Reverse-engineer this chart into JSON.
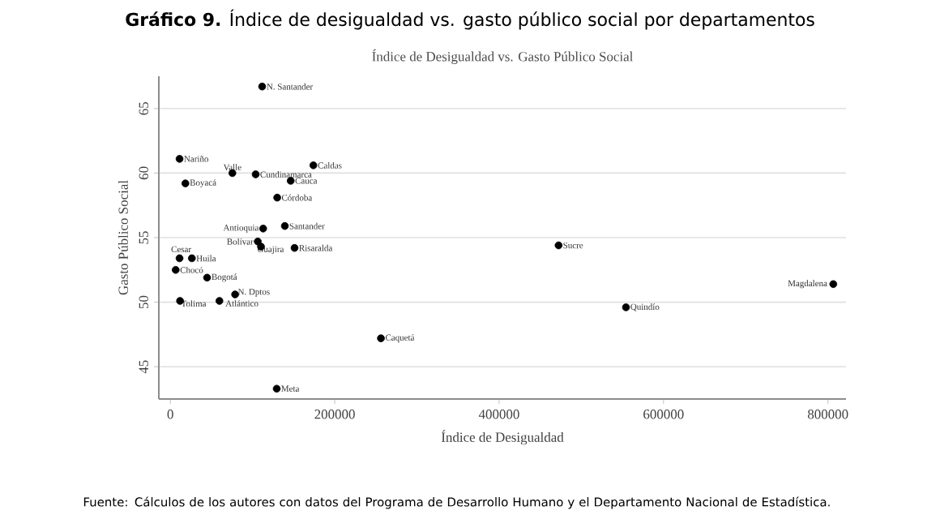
{
  "chart_data": {
    "type": "scatter",
    "title": "**Gráfico 9.** Índice de desigualdad vs. gasto público social por departamentos",
    "subtitle": "Índice de Desigualdad vs. Gasto Público Social",
    "xlabel": "Índice de Desigualdad",
    "ylabel": "Gasto Público Social",
    "x": [
      111700,
      11200,
      75500,
      103800,
      174000,
      18300,
      146400,
      130000,
      112900,
      139300,
      106400,
      110300,
      151100,
      11200,
      26200,
      6500,
      44700,
      78800,
      11800,
      59700,
      256200,
      129400,
      472300,
      806500,
      554300
    ],
    "series": [
      {
        "color": "#000000",
        "values": [
          66.7,
          61.1,
          60.0,
          59.9,
          60.6,
          59.2,
          59.4,
          58.1,
          55.7,
          55.9,
          54.7,
          54.3,
          54.2,
          53.4,
          53.4,
          52.5,
          51.9,
          50.6,
          50.1,
          50.1,
          47.2,
          43.3,
          54.4,
          51.4,
          49.6
        ]
      }
    ],
    "xlim": [
      -14000,
      822000
    ],
    "ylim": [
      42.5,
      67.5
    ],
    "xticks": [
      0,
      200000,
      400000,
      600000,
      800000
    ],
    "yticks": [
      45,
      50,
      55,
      60,
      65
    ],
    "grid": "y",
    "marker": "circle",
    "annotations": [
      {
        "text": "N. Santander",
        "x": 111700,
        "y": 66.7
      },
      {
        "text": "Nariño",
        "x": 11200,
        "y": 61.1
      },
      {
        "text": "Valle",
        "x": 75500,
        "y": 60.0
      },
      {
        "text": "Cundinamarca",
        "x": 103800,
        "y": 59.9
      },
      {
        "text": "Caldas",
        "x": 174000,
        "y": 60.6
      },
      {
        "text": "Boyacá",
        "x": 18300,
        "y": 59.2
      },
      {
        "text": "Cauca",
        "x": 146400,
        "y": 59.4
      },
      {
        "text": "Córdoba",
        "x": 130000,
        "y": 58.1
      },
      {
        "text": "Antioquia",
        "x": 112900,
        "y": 55.7
      },
      {
        "text": "Santander",
        "x": 139300,
        "y": 55.9
      },
      {
        "text": "Bolívar",
        "x": 106400,
        "y": 54.7
      },
      {
        "text": "Guajira",
        "x": 110300,
        "y": 54.3
      },
      {
        "text": "Risaralda",
        "x": 151100,
        "y": 54.2
      },
      {
        "text": "Cesar",
        "x": 11200,
        "y": 53.4
      },
      {
        "text": "Huila",
        "x": 26200,
        "y": 53.4
      },
      {
        "text": "Chocó",
        "x": 6500,
        "y": 52.5
      },
      {
        "text": "Bogotá",
        "x": 44700,
        "y": 51.9
      },
      {
        "text": "N. Dptos",
        "x": 78800,
        "y": 50.6
      },
      {
        "text": "Tolima",
        "x": 11800,
        "y": 50.1
      },
      {
        "text": "Atlántico",
        "x": 59700,
        "y": 50.1
      },
      {
        "text": "Caquetá",
        "x": 256200,
        "y": 47.2
      },
      {
        "text": "Meta",
        "x": 129400,
        "y": 43.3
      },
      {
        "text": "Sucre",
        "x": 472300,
        "y": 54.4
      },
      {
        "text": "Magdalena",
        "x": 806500,
        "y": 51.4
      },
      {
        "text": "Quindío",
        "x": 554300,
        "y": 49.6
      },
      "Fuente: Cálculos de los autores con datos del Programa de Desarrollo Humano y el Departamento Nacional de Estadística."
    ]
  }
}
